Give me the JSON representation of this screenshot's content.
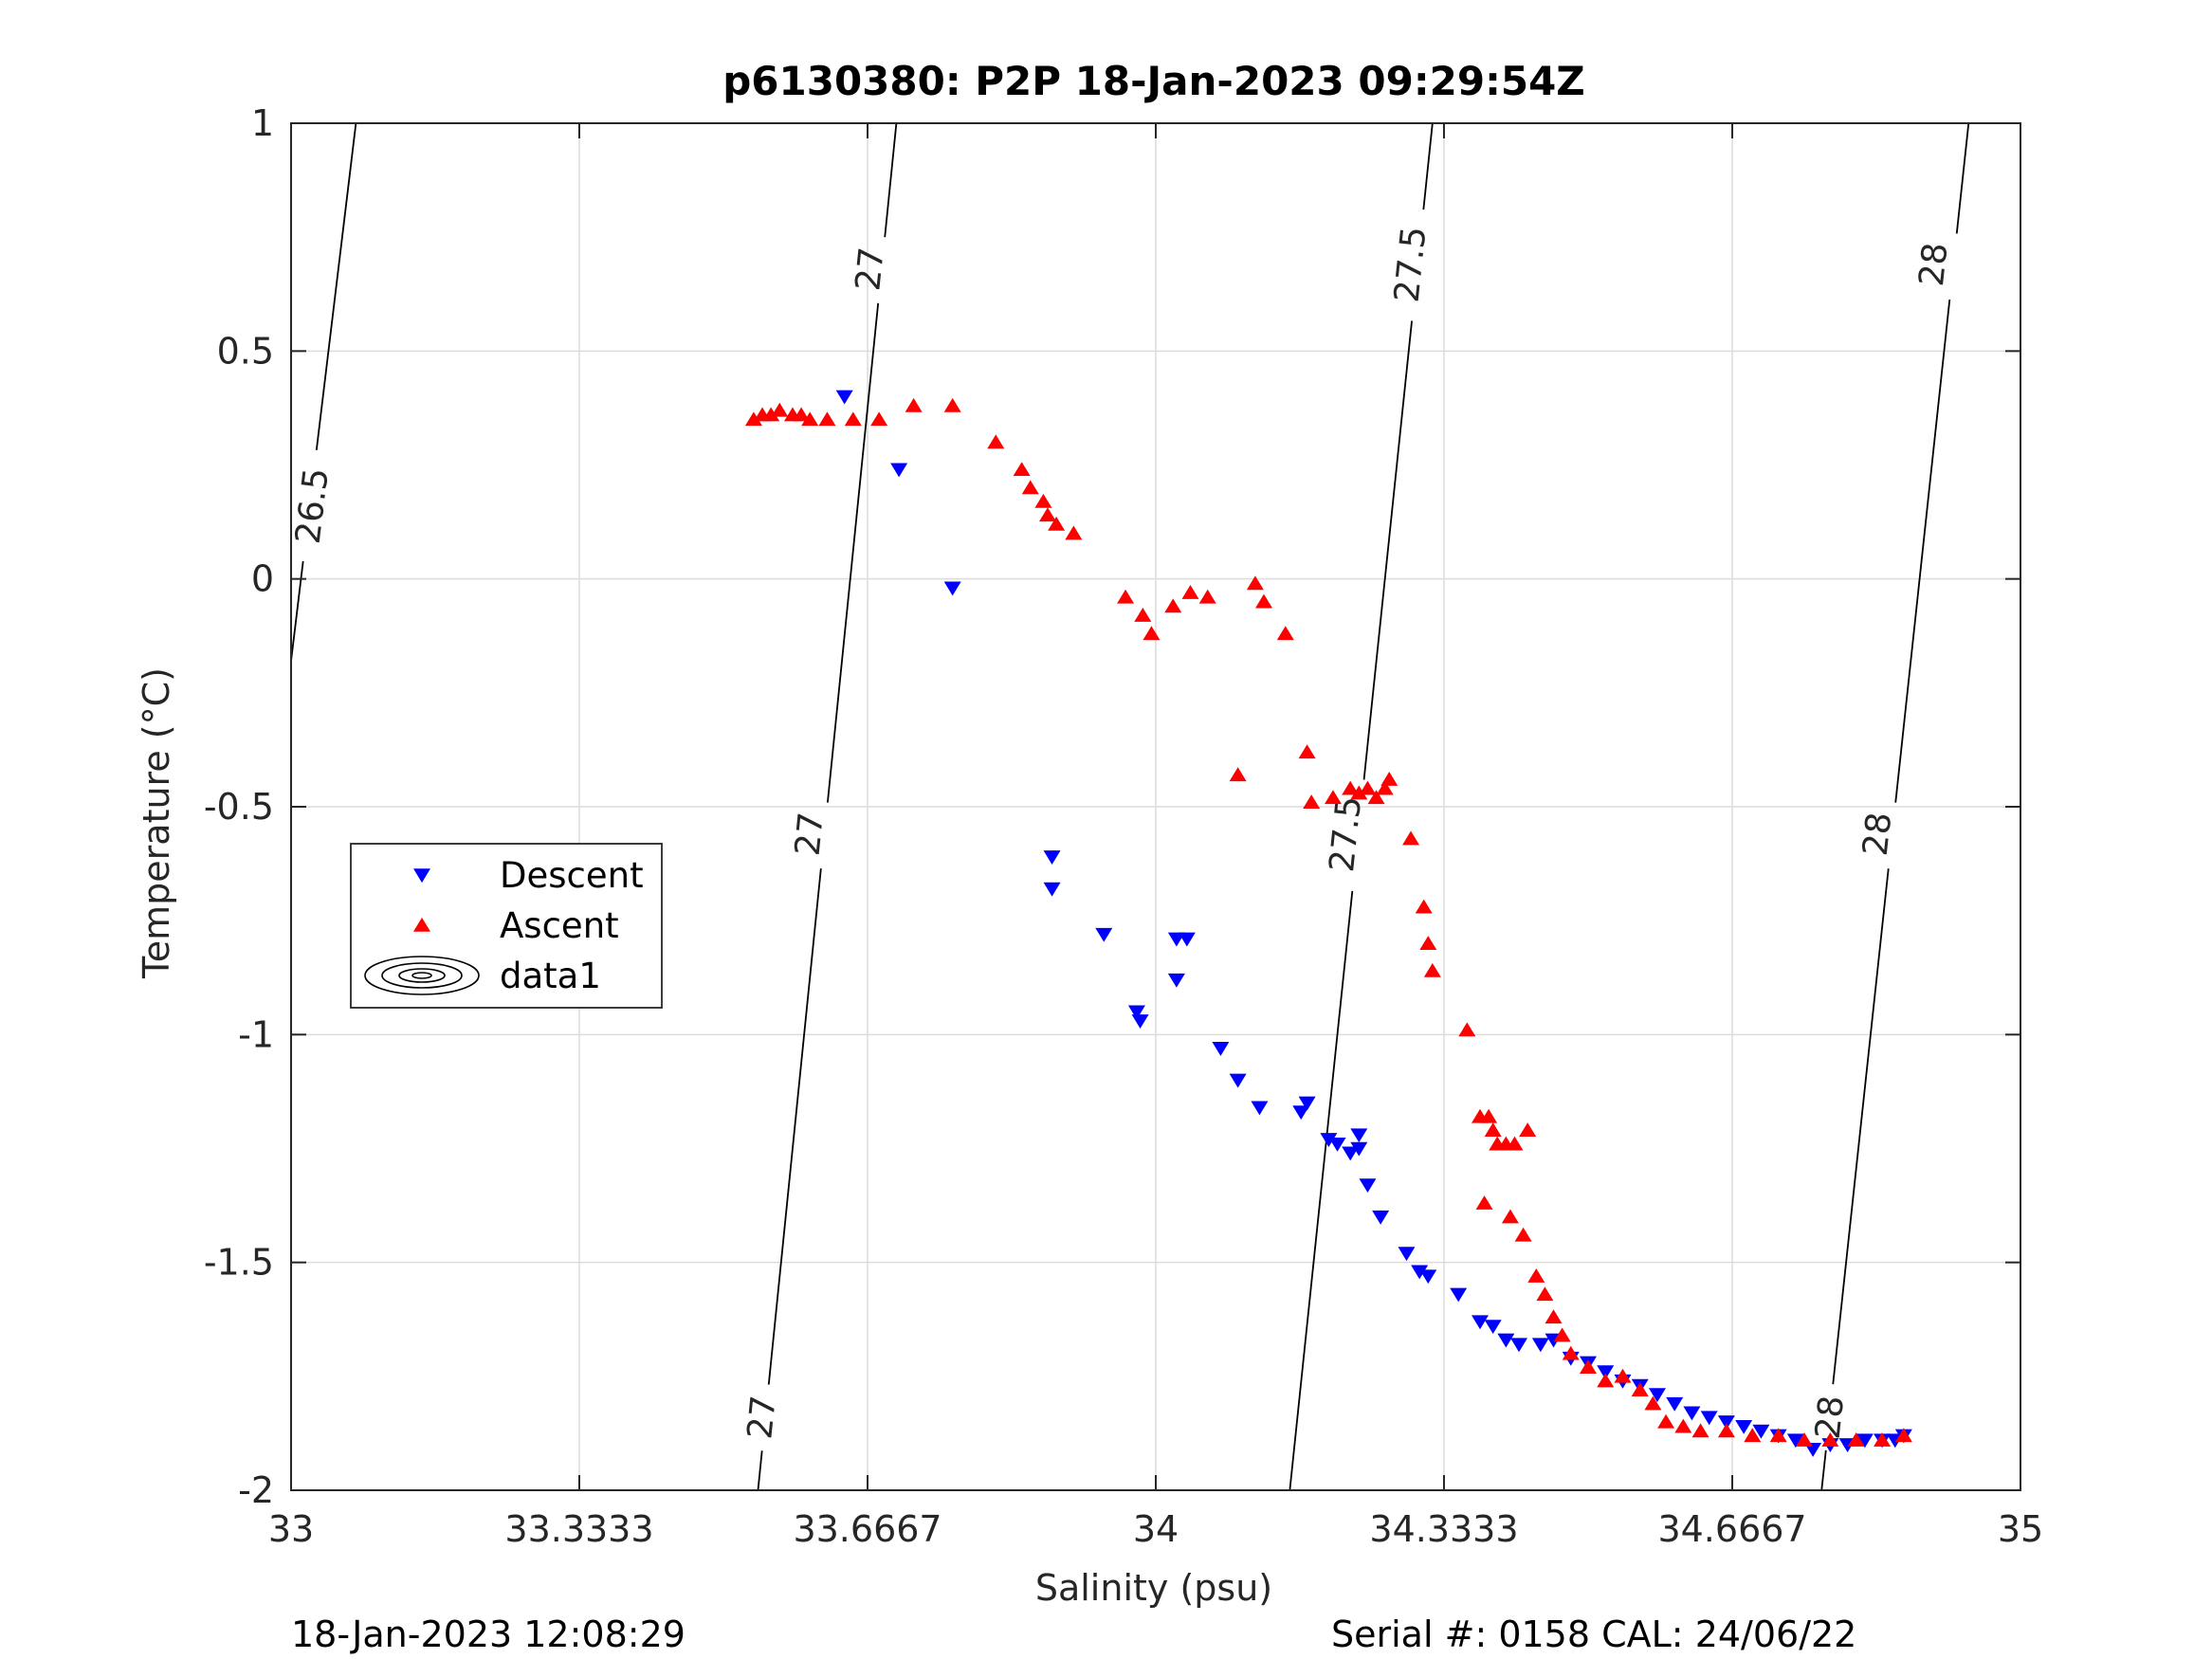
{
  "figure": {
    "title": "p6130380: P2P 18-Jan-2023 09:29:54Z",
    "footer_left": "18-Jan-2023 12:08:29",
    "footer_right": "Serial #: 0158  CAL: 24/06/22"
  },
  "chart_data": {
    "type": "scatter",
    "title": "p6130380: P2P 18-Jan-2023 09:29:54Z",
    "xlabel": "Salinity (psu)",
    "ylabel": "Temperature (°C)",
    "xlim": [
      33,
      35
    ],
    "ylim": [
      -2,
      1
    ],
    "x_ticks": [
      33,
      33.3333,
      33.6667,
      34,
      34.3333,
      34.6667,
      35
    ],
    "x_tick_labels": [
      "33",
      "33.3333",
      "33.6667",
      "34",
      "34.3333",
      "34.6667",
      "35"
    ],
    "y_ticks": [
      -2,
      -1.5,
      -1,
      -0.5,
      0,
      0.5,
      1
    ],
    "y_tick_labels": [
      "-2",
      "-1.5",
      "-1",
      "-0.5",
      "0",
      "0.5",
      "1"
    ],
    "grid": true,
    "legend_position": "left-middle",
    "legend": [
      {
        "label": "Descent",
        "marker": "triangle-down",
        "color": "#0000ff"
      },
      {
        "label": "Ascent",
        "marker": "triangle-up",
        "color": "#ff0000"
      },
      {
        "label": "data1",
        "marker": "contour-ellipses",
        "color": "#000000"
      }
    ],
    "series": [
      {
        "name": "Descent",
        "marker": "triangle-down",
        "color": "#0000ff",
        "points": [
          [
            33.64,
            0.4
          ],
          [
            33.703,
            0.24
          ],
          [
            33.765,
            -0.02
          ],
          [
            33.88,
            -0.61
          ],
          [
            33.88,
            -0.68
          ],
          [
            33.94,
            -0.78
          ],
          [
            34.024,
            -0.79
          ],
          [
            34.036,
            -0.79
          ],
          [
            34.024,
            -0.88
          ],
          [
            33.978,
            -0.95
          ],
          [
            33.982,
            -0.97
          ],
          [
            34.075,
            -1.03
          ],
          [
            34.095,
            -1.1
          ],
          [
            34.12,
            -1.16
          ],
          [
            34.168,
            -1.17
          ],
          [
            34.175,
            -1.15
          ],
          [
            34.2,
            -1.23
          ],
          [
            34.21,
            -1.24
          ],
          [
            34.225,
            -1.26
          ],
          [
            34.235,
            -1.25
          ],
          [
            34.235,
            -1.22
          ],
          [
            34.245,
            -1.33
          ],
          [
            34.26,
            -1.4
          ],
          [
            34.29,
            -1.48
          ],
          [
            34.305,
            -1.52
          ],
          [
            34.315,
            -1.53
          ],
          [
            34.35,
            -1.57
          ],
          [
            34.375,
            -1.63
          ],
          [
            34.39,
            -1.64
          ],
          [
            34.405,
            -1.67
          ],
          [
            34.42,
            -1.68
          ],
          [
            34.445,
            -1.68
          ],
          [
            34.46,
            -1.67
          ],
          [
            34.48,
            -1.71
          ],
          [
            34.5,
            -1.72
          ],
          [
            34.52,
            -1.74
          ],
          [
            34.54,
            -1.76
          ],
          [
            34.56,
            -1.77
          ],
          [
            34.58,
            -1.79
          ],
          [
            34.6,
            -1.81
          ],
          [
            34.62,
            -1.83
          ],
          [
            34.64,
            -1.84
          ],
          [
            34.66,
            -1.85
          ],
          [
            34.68,
            -1.86
          ],
          [
            34.7,
            -1.87
          ],
          [
            34.72,
            -1.88
          ],
          [
            34.74,
            -1.89
          ],
          [
            34.76,
            -1.91
          ],
          [
            34.78,
            -1.9
          ],
          [
            34.8,
            -1.9
          ],
          [
            34.82,
            -1.89
          ],
          [
            34.84,
            -1.89
          ],
          [
            34.855,
            -1.89
          ],
          [
            34.865,
            -1.88
          ]
        ]
      },
      {
        "name": "Ascent",
        "marker": "triangle-up",
        "color": "#ff0000",
        "points": [
          [
            33.535,
            0.35
          ],
          [
            33.545,
            0.36
          ],
          [
            33.555,
            0.36
          ],
          [
            33.565,
            0.37
          ],
          [
            33.58,
            0.36
          ],
          [
            33.59,
            0.36
          ],
          [
            33.6,
            0.35
          ],
          [
            33.62,
            0.35
          ],
          [
            33.65,
            0.35
          ],
          [
            33.68,
            0.35
          ],
          [
            33.72,
            0.38
          ],
          [
            33.765,
            0.38
          ],
          [
            33.815,
            0.3
          ],
          [
            33.845,
            0.24
          ],
          [
            33.855,
            0.2
          ],
          [
            33.87,
            0.17
          ],
          [
            33.875,
            0.14
          ],
          [
            33.885,
            0.12
          ],
          [
            33.905,
            0.1
          ],
          [
            33.965,
            -0.04
          ],
          [
            33.985,
            -0.08
          ],
          [
            33.995,
            -0.12
          ],
          [
            34.02,
            -0.06
          ],
          [
            34.04,
            -0.03
          ],
          [
            34.06,
            -0.04
          ],
          [
            34.115,
            -0.01
          ],
          [
            34.125,
            -0.05
          ],
          [
            34.15,
            -0.12
          ],
          [
            34.095,
            -0.43
          ],
          [
            34.175,
            -0.38
          ],
          [
            34.18,
            -0.49
          ],
          [
            34.205,
            -0.48
          ],
          [
            34.225,
            -0.46
          ],
          [
            34.235,
            -0.47
          ],
          [
            34.245,
            -0.46
          ],
          [
            34.255,
            -0.48
          ],
          [
            34.265,
            -0.46
          ],
          [
            34.27,
            -0.44
          ],
          [
            34.295,
            -0.57
          ],
          [
            34.31,
            -0.72
          ],
          [
            34.315,
            -0.8
          ],
          [
            34.32,
            -0.86
          ],
          [
            34.36,
            -0.99
          ],
          [
            34.375,
            -1.18
          ],
          [
            34.38,
            -1.37
          ],
          [
            34.385,
            -1.18
          ],
          [
            34.39,
            -1.21
          ],
          [
            34.395,
            -1.24
          ],
          [
            34.405,
            -1.24
          ],
          [
            34.415,
            -1.24
          ],
          [
            34.43,
            -1.21
          ],
          [
            34.41,
            -1.4
          ],
          [
            34.425,
            -1.44
          ],
          [
            34.44,
            -1.53
          ],
          [
            34.45,
            -1.57
          ],
          [
            34.46,
            -1.62
          ],
          [
            34.47,
            -1.66
          ],
          [
            34.48,
            -1.7
          ],
          [
            34.5,
            -1.73
          ],
          [
            34.52,
            -1.76
          ],
          [
            34.54,
            -1.75
          ],
          [
            34.56,
            -1.78
          ],
          [
            34.575,
            -1.81
          ],
          [
            34.59,
            -1.85
          ],
          [
            34.61,
            -1.86
          ],
          [
            34.63,
            -1.87
          ],
          [
            34.66,
            -1.87
          ],
          [
            34.69,
            -1.88
          ],
          [
            34.72,
            -1.88
          ],
          [
            34.75,
            -1.89
          ],
          [
            34.78,
            -1.89
          ],
          [
            34.81,
            -1.89
          ],
          [
            34.84,
            -1.89
          ],
          [
            34.865,
            -1.88
          ]
        ]
      }
    ],
    "contours": [
      {
        "label": "26.5",
        "line": [
          [
            33.0,
            -0.18
          ],
          [
            33.075,
            1.0
          ]
        ],
        "label_positions": [
          [
            33.025,
            0.16
          ]
        ]
      },
      {
        "label": "27",
        "line": [
          [
            33.54,
            -2.0
          ],
          [
            33.7,
            1.0
          ]
        ],
        "label_positions": [
          [
            33.545,
            -1.84
          ],
          [
            33.6,
            -0.56
          ],
          [
            33.67,
            0.68
          ]
        ]
      },
      {
        "label": "27.5",
        "line": [
          [
            34.155,
            -2.0
          ],
          [
            34.32,
            1.0
          ]
        ],
        "label_positions": [
          [
            34.22,
            -0.56
          ],
          [
            34.295,
            0.69
          ]
        ]
      },
      {
        "label": "28",
        "line": [
          [
            34.77,
            -2.0
          ],
          [
            34.94,
            1.0
          ]
        ],
        "label_positions": [
          [
            34.78,
            -1.84
          ],
          [
            34.835,
            -0.56
          ],
          [
            34.9,
            0.69
          ]
        ]
      }
    ]
  }
}
